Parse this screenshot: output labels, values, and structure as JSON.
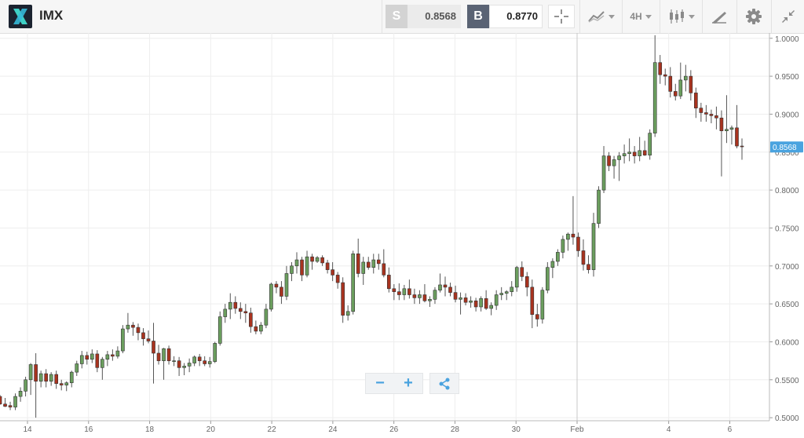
{
  "header": {
    "symbol": "IMX",
    "sell_label": "S",
    "sell_price": "0.8568",
    "buy_label": "B",
    "buy_price": "0.8770",
    "timeframe": "4H",
    "icons": [
      "crosshair-icon",
      "indicators-icon",
      "timeframe-selector",
      "chart-type-icon",
      "drawing-tools-icon",
      "settings-icon",
      "collapse-icon"
    ]
  },
  "chart_data": {
    "type": "candlestick",
    "symbol": "IMX",
    "ylim": [
      0.496,
      1.007
    ],
    "y_ticks": [
      "1.0000",
      "0.9500",
      "0.9000",
      "0.8500",
      "0.8000",
      "0.7500",
      "0.7000",
      "0.6500",
      "0.6000",
      "0.5500",
      "0.5000"
    ],
    "y_tick_values": [
      1.0,
      0.95,
      0.9,
      0.85,
      0.8,
      0.75,
      0.7,
      0.65,
      0.6,
      0.55,
      0.5
    ],
    "x_ticks": [
      "14",
      "16",
      "18",
      "20",
      "22",
      "24",
      "26",
      "28",
      "30",
      "Feb",
      "4",
      "6"
    ],
    "x_tick_days": [
      14,
      16,
      18,
      20,
      22,
      24,
      26,
      28,
      30,
      32,
      35,
      37
    ],
    "x_range_days": [
      13.1,
      38.3
    ],
    "current_price": "0.8568",
    "current_price_value": 0.8568,
    "colors": {
      "up": "#6b9e5e",
      "down": "#a8331f",
      "price_tag": "#4aa3df",
      "grid": "#eeeeee"
    },
    "candles": [
      [
        0.528,
        0.53,
        0.517,
        0.518
      ],
      [
        0.518,
        0.526,
        0.514,
        0.515
      ],
      [
        0.516,
        0.521,
        0.51,
        0.514
      ],
      [
        0.514,
        0.532,
        0.51,
        0.528
      ],
      [
        0.528,
        0.54,
        0.521,
        0.535
      ],
      [
        0.535,
        0.554,
        0.528,
        0.55
      ],
      [
        0.55,
        0.572,
        0.53,
        0.57
      ],
      [
        0.57,
        0.585,
        0.5,
        0.548
      ],
      [
        0.548,
        0.562,
        0.54,
        0.558
      ],
      [
        0.558,
        0.564,
        0.54,
        0.548
      ],
      [
        0.548,
        0.56,
        0.542,
        0.557
      ],
      [
        0.557,
        0.562,
        0.538,
        0.545
      ],
      [
        0.545,
        0.55,
        0.536,
        0.543
      ],
      [
        0.543,
        0.548,
        0.535,
        0.546
      ],
      [
        0.546,
        0.562,
        0.54,
        0.56
      ],
      [
        0.56,
        0.575,
        0.555,
        0.571
      ],
      [
        0.571,
        0.588,
        0.565,
        0.582
      ],
      [
        0.582,
        0.587,
        0.57,
        0.577
      ],
      [
        0.577,
        0.59,
        0.572,
        0.584
      ],
      [
        0.584,
        0.589,
        0.56,
        0.566
      ],
      [
        0.566,
        0.58,
        0.55,
        0.577
      ],
      [
        0.577,
        0.588,
        0.568,
        0.583
      ],
      [
        0.583,
        0.59,
        0.575,
        0.581
      ],
      [
        0.581,
        0.594,
        0.578,
        0.588
      ],
      [
        0.588,
        0.622,
        0.585,
        0.617
      ],
      [
        0.617,
        0.638,
        0.612,
        0.622
      ],
      [
        0.622,
        0.626,
        0.608,
        0.619
      ],
      [
        0.619,
        0.624,
        0.602,
        0.612
      ],
      [
        0.612,
        0.618,
        0.595,
        0.604
      ],
      [
        0.604,
        0.615,
        0.598,
        0.601
      ],
      [
        0.601,
        0.625,
        0.545,
        0.585
      ],
      [
        0.585,
        0.596,
        0.57,
        0.575
      ],
      [
        0.575,
        0.592,
        0.55,
        0.591
      ],
      [
        0.591,
        0.595,
        0.57,
        0.575
      ],
      [
        0.575,
        0.581,
        0.568,
        0.575
      ],
      [
        0.575,
        0.58,
        0.555,
        0.566
      ],
      [
        0.566,
        0.572,
        0.556,
        0.568
      ],
      [
        0.568,
        0.578,
        0.56,
        0.572
      ],
      [
        0.572,
        0.582,
        0.568,
        0.58
      ],
      [
        0.58,
        0.584,
        0.568,
        0.575
      ],
      [
        0.575,
        0.581,
        0.568,
        0.571
      ],
      [
        0.571,
        0.58,
        0.566,
        0.574
      ],
      [
        0.574,
        0.6,
        0.572,
        0.598
      ],
      [
        0.598,
        0.64,
        0.595,
        0.633
      ],
      [
        0.633,
        0.65,
        0.625,
        0.643
      ],
      [
        0.643,
        0.664,
        0.63,
        0.652
      ],
      [
        0.652,
        0.66,
        0.637,
        0.644
      ],
      [
        0.644,
        0.652,
        0.63,
        0.64
      ],
      [
        0.64,
        0.65,
        0.625,
        0.638
      ],
      [
        0.638,
        0.645,
        0.612,
        0.62
      ],
      [
        0.62,
        0.628,
        0.61,
        0.614
      ],
      [
        0.614,
        0.626,
        0.61,
        0.622
      ],
      [
        0.622,
        0.65,
        0.618,
        0.643
      ],
      [
        0.643,
        0.678,
        0.64,
        0.676
      ],
      [
        0.676,
        0.68,
        0.664,
        0.672
      ],
      [
        0.672,
        0.68,
        0.65,
        0.66
      ],
      [
        0.66,
        0.7,
        0.655,
        0.69
      ],
      [
        0.69,
        0.705,
        0.68,
        0.7
      ],
      [
        0.7,
        0.718,
        0.69,
        0.708
      ],
      [
        0.708,
        0.712,
        0.68,
        0.688
      ],
      [
        0.688,
        0.72,
        0.685,
        0.712
      ],
      [
        0.712,
        0.716,
        0.695,
        0.706
      ],
      [
        0.706,
        0.713,
        0.704,
        0.711
      ],
      [
        0.711,
        0.714,
        0.7,
        0.704
      ],
      [
        0.704,
        0.708,
        0.69,
        0.695
      ],
      [
        0.695,
        0.705,
        0.68,
        0.688
      ],
      [
        0.688,
        0.692,
        0.67,
        0.678
      ],
      [
        0.678,
        0.685,
        0.625,
        0.635
      ],
      [
        0.635,
        0.648,
        0.628,
        0.64
      ],
      [
        0.64,
        0.72,
        0.636,
        0.716
      ],
      [
        0.716,
        0.736,
        0.685,
        0.69
      ],
      [
        0.69,
        0.712,
        0.675,
        0.705
      ],
      [
        0.705,
        0.712,
        0.695,
        0.698
      ],
      [
        0.698,
        0.716,
        0.69,
        0.708
      ],
      [
        0.708,
        0.716,
        0.695,
        0.703
      ],
      [
        0.703,
        0.722,
        0.685,
        0.688
      ],
      [
        0.688,
        0.698,
        0.665,
        0.67
      ],
      [
        0.67,
        0.676,
        0.655,
        0.666
      ],
      [
        0.666,
        0.677,
        0.655,
        0.662
      ],
      [
        0.662,
        0.675,
        0.655,
        0.67
      ],
      [
        0.67,
        0.682,
        0.657,
        0.662
      ],
      [
        0.662,
        0.67,
        0.65,
        0.658
      ],
      [
        0.658,
        0.668,
        0.65,
        0.662
      ],
      [
        0.662,
        0.676,
        0.652,
        0.654
      ],
      [
        0.654,
        0.66,
        0.646,
        0.656
      ],
      [
        0.656,
        0.672,
        0.65,
        0.668
      ],
      [
        0.668,
        0.69,
        0.665,
        0.675
      ],
      [
        0.675,
        0.686,
        0.66,
        0.672
      ],
      [
        0.672,
        0.678,
        0.66,
        0.665
      ],
      [
        0.665,
        0.674,
        0.652,
        0.656
      ],
      [
        0.656,
        0.665,
        0.636,
        0.658
      ],
      [
        0.658,
        0.664,
        0.648,
        0.652
      ],
      [
        0.652,
        0.66,
        0.645,
        0.654
      ],
      [
        0.654,
        0.658,
        0.64,
        0.646
      ],
      [
        0.646,
        0.66,
        0.64,
        0.657
      ],
      [
        0.657,
        0.668,
        0.642,
        0.644
      ],
      [
        0.644,
        0.652,
        0.635,
        0.648
      ],
      [
        0.648,
        0.668,
        0.642,
        0.662
      ],
      [
        0.662,
        0.672,
        0.655,
        0.664
      ],
      [
        0.664,
        0.668,
        0.655,
        0.666
      ],
      [
        0.666,
        0.68,
        0.66,
        0.672
      ],
      [
        0.672,
        0.7,
        0.666,
        0.698
      ],
      [
        0.698,
        0.706,
        0.68,
        0.686
      ],
      [
        0.686,
        0.692,
        0.66,
        0.672
      ],
      [
        0.672,
        0.682,
        0.618,
        0.636
      ],
      [
        0.636,
        0.65,
        0.62,
        0.63
      ],
      [
        0.63,
        0.672,
        0.624,
        0.668
      ],
      [
        0.668,
        0.705,
        0.664,
        0.698
      ],
      [
        0.698,
        0.71,
        0.684,
        0.706
      ],
      [
        0.706,
        0.722,
        0.7,
        0.718
      ],
      [
        0.718,
        0.74,
        0.71,
        0.735
      ],
      [
        0.735,
        0.744,
        0.72,
        0.742
      ],
      [
        0.742,
        0.792,
        0.728,
        0.738
      ],
      [
        0.738,
        0.744,
        0.712,
        0.72
      ],
      [
        0.72,
        0.735,
        0.694,
        0.702
      ],
      [
        0.702,
        0.714,
        0.69,
        0.695
      ],
      [
        0.695,
        0.77,
        0.686,
        0.756
      ],
      [
        0.756,
        0.805,
        0.75,
        0.8
      ],
      [
        0.8,
        0.858,
        0.796,
        0.845
      ],
      [
        0.845,
        0.85,
        0.825,
        0.832
      ],
      [
        0.832,
        0.845,
        0.815,
        0.84
      ],
      [
        0.84,
        0.85,
        0.812,
        0.845
      ],
      [
        0.845,
        0.86,
        0.835,
        0.848
      ],
      [
        0.848,
        0.868,
        0.838,
        0.85
      ],
      [
        0.85,
        0.858,
        0.835,
        0.845
      ],
      [
        0.845,
        0.87,
        0.838,
        0.852
      ],
      [
        0.852,
        0.865,
        0.845,
        0.846
      ],
      [
        0.846,
        0.88,
        0.84,
        0.875
      ],
      [
        0.875,
        1.004,
        0.87,
        0.968
      ],
      [
        0.968,
        0.978,
        0.94,
        0.952
      ],
      [
        0.952,
        0.96,
        0.938,
        0.95
      ],
      [
        0.95,
        0.962,
        0.922,
        0.93
      ],
      [
        0.93,
        0.94,
        0.918,
        0.924
      ],
      [
        0.924,
        0.968,
        0.92,
        0.945
      ],
      [
        0.945,
        0.965,
        0.93,
        0.95
      ],
      [
        0.95,
        0.958,
        0.918,
        0.928
      ],
      [
        0.928,
        0.935,
        0.895,
        0.908
      ],
      [
        0.908,
        0.915,
        0.89,
        0.902
      ],
      [
        0.902,
        0.912,
        0.89,
        0.9
      ],
      [
        0.9,
        0.906,
        0.888,
        0.898
      ],
      [
        0.898,
        0.91,
        0.88,
        0.895
      ],
      [
        0.895,
        0.905,
        0.818,
        0.878
      ],
      [
        0.878,
        0.925,
        0.862,
        0.88
      ],
      [
        0.88,
        0.885,
        0.86,
        0.882
      ],
      [
        0.882,
        0.912,
        0.855,
        0.858
      ],
      [
        0.858,
        0.868,
        0.84,
        0.857
      ]
    ]
  }
}
